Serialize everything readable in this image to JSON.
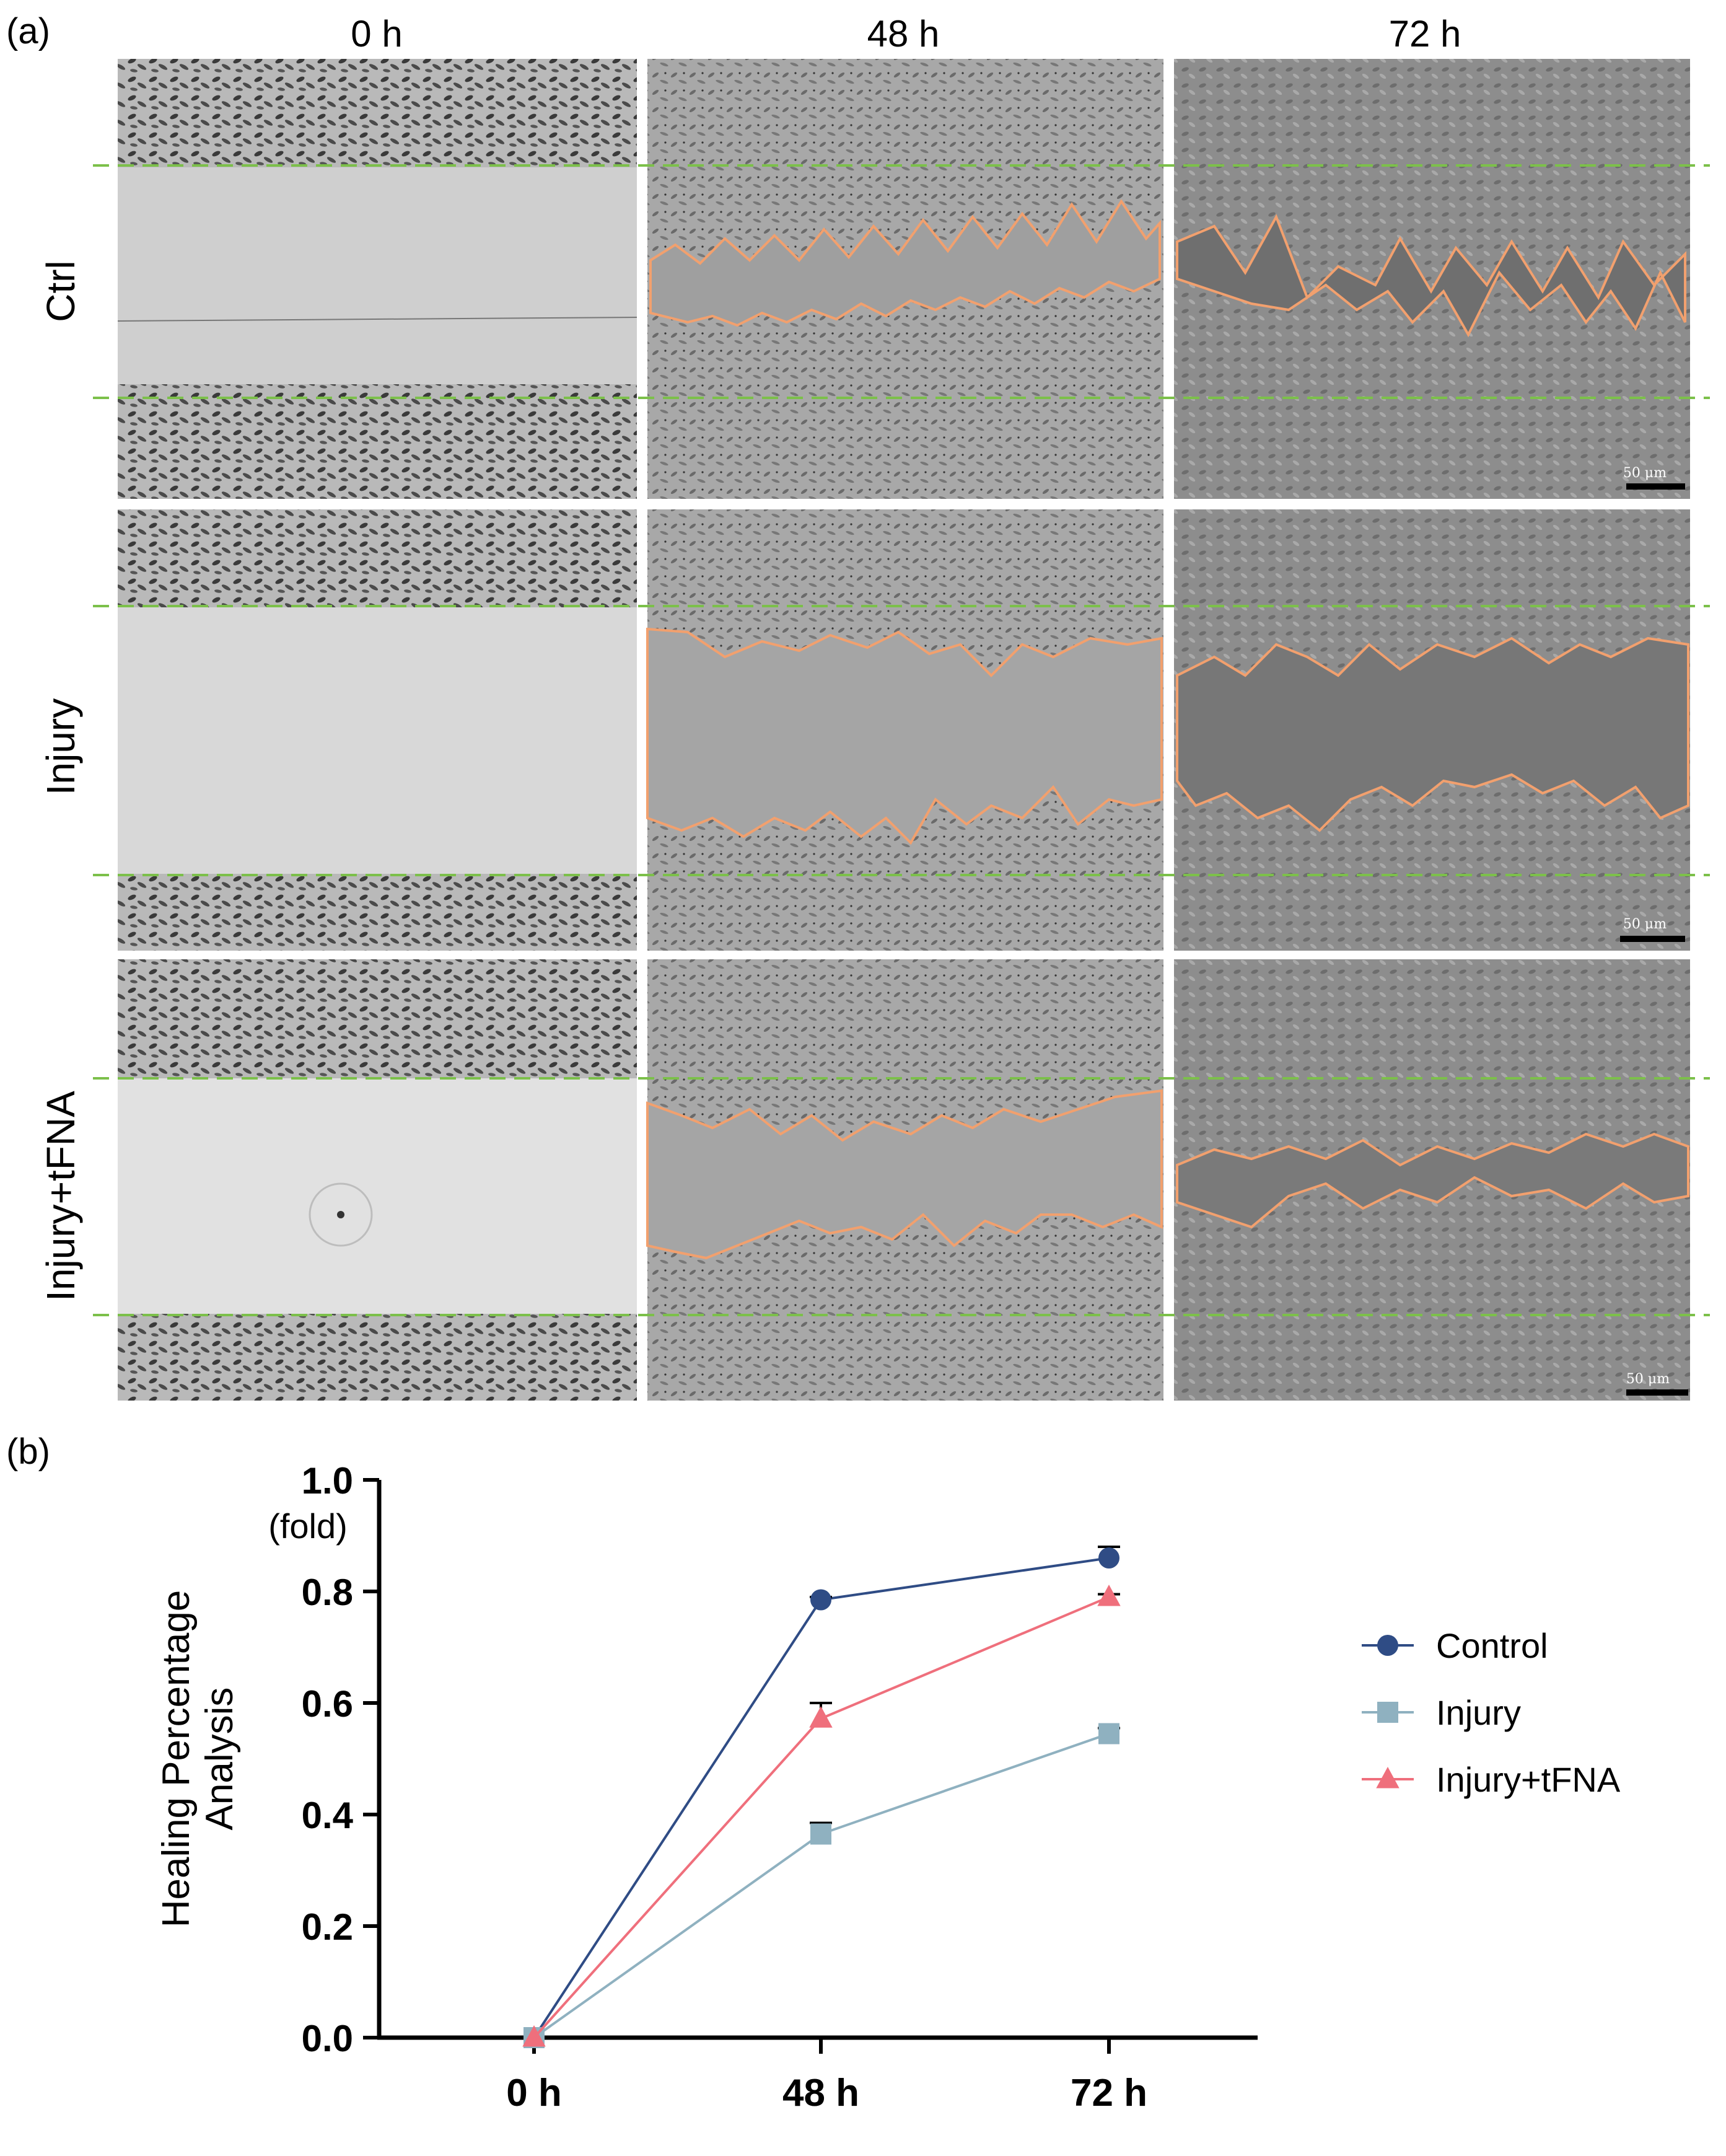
{
  "panel_a": {
    "label": "(a)",
    "columns": [
      "0 h",
      "48 h",
      "72 h"
    ],
    "rows": [
      "Ctrl",
      "Injury",
      "Injury+tFNA"
    ],
    "scale_bar_label": "50 μm"
  },
  "panel_b": {
    "label": "(b)"
  },
  "chart_data": {
    "type": "line",
    "title": "",
    "xlabel": "",
    "ylabel": "Healing Percentage Analysis",
    "ylabel_lines": [
      "Healing Percentage",
      "Analysis"
    ],
    "yunit": "(fold)",
    "categories": [
      "0 h",
      "48 h",
      "72 h"
    ],
    "ylim": [
      0,
      1.0
    ],
    "yticks": [
      "0.0",
      "0.2",
      "0.4",
      "0.6",
      "0.8",
      "1.0"
    ],
    "legend_position": "right",
    "series": [
      {
        "name": "Control",
        "marker": "circle",
        "color": "#2f4c85",
        "values": [
          0.0,
          0.785,
          0.86
        ],
        "errors": [
          0,
          0.005,
          0.02
        ]
      },
      {
        "name": "Injury",
        "marker": "square",
        "color": "#8fb1c0",
        "values": [
          0.0,
          0.365,
          0.545
        ],
        "errors": [
          0,
          0.02,
          0.01
        ]
      },
      {
        "name": "Injury+tFNA",
        "marker": "triangle",
        "color": "#ef6f7c",
        "values": [
          0.0,
          0.572,
          0.79
        ],
        "errors": [
          0,
          0.028,
          0.005
        ]
      }
    ]
  },
  "colors": {
    "axis": "#000000",
    "dashed_line": "#7cc04a",
    "wound_outline": "#f2a06e"
  }
}
